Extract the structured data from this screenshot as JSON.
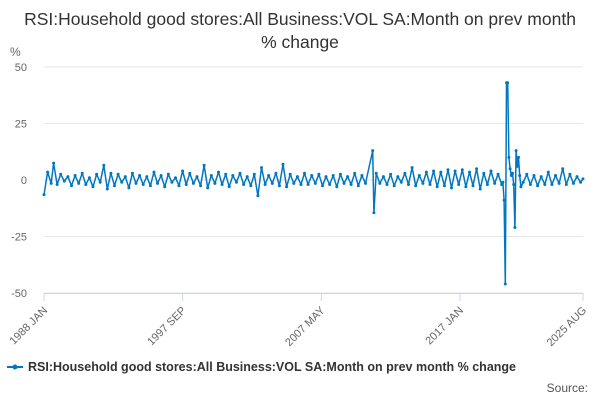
{
  "chart_data": {
    "type": "line",
    "title": "RSI:Household good stores:All Business:VOL SA:Month on prev month % change",
    "ylabel": "%",
    "xlabel": "",
    "ylim": [
      -50,
      50
    ],
    "yticks": [
      50,
      25,
      0,
      -25,
      -50
    ],
    "xrange": [
      "1988-01",
      "2025-08"
    ],
    "xticks": [
      "1988 JAN",
      "1997 SEP",
      "2007 MAY",
      "2017 JAN",
      "2025 AUG"
    ],
    "grid": "horizontal",
    "legend_position": "bottom",
    "series": [
      {
        "name": "RSI:Household good stores:All Business:VOL SA:Month on prev month % change",
        "color": "#0077c0",
        "points": [
          [
            "1988-01",
            -6.5
          ],
          [
            "1988-04",
            3.5
          ],
          [
            "1988-07",
            -1.5
          ],
          [
            "1988-09",
            7.5
          ],
          [
            "1988-12",
            -2.0
          ],
          [
            "1989-03",
            2.5
          ],
          [
            "1989-06",
            -0.5
          ],
          [
            "1989-09",
            1.5
          ],
          [
            "1989-12",
            -2.5
          ],
          [
            "1990-03",
            2.0
          ],
          [
            "1990-06",
            -1.5
          ],
          [
            "1990-09",
            3.0
          ],
          [
            "1990-12",
            -2.0
          ],
          [
            "1991-03",
            1.0
          ],
          [
            "1991-06",
            -3.0
          ],
          [
            "1991-09",
            2.5
          ],
          [
            "1991-12",
            -1.0
          ],
          [
            "1992-03",
            6.5
          ],
          [
            "1992-06",
            -4.0
          ],
          [
            "1992-09",
            3.0
          ],
          [
            "1992-12",
            -2.5
          ],
          [
            "1993-03",
            2.5
          ],
          [
            "1993-06",
            -1.0
          ],
          [
            "1993-09",
            1.5
          ],
          [
            "1993-12",
            -3.5
          ],
          [
            "1994-03",
            3.0
          ],
          [
            "1994-06",
            -1.5
          ],
          [
            "1994-09",
            2.0
          ],
          [
            "1994-12",
            -2.0
          ],
          [
            "1995-03",
            1.5
          ],
          [
            "1995-06",
            -2.5
          ],
          [
            "1995-09",
            3.5
          ],
          [
            "1995-12",
            -1.5
          ],
          [
            "1996-03",
            2.0
          ],
          [
            "1996-06",
            -3.0
          ],
          [
            "1996-09",
            2.5
          ],
          [
            "1996-12",
            -1.0
          ],
          [
            "1997-03",
            1.0
          ],
          [
            "1997-06",
            -2.5
          ],
          [
            "1997-09",
            4.0
          ],
          [
            "1997-12",
            -2.0
          ],
          [
            "1998-03",
            3.0
          ],
          [
            "1998-06",
            -1.5
          ],
          [
            "1998-09",
            1.5
          ],
          [
            "1998-12",
            -2.5
          ],
          [
            "1999-03",
            6.5
          ],
          [
            "1999-06",
            -3.5
          ],
          [
            "1999-09",
            2.0
          ],
          [
            "1999-12",
            -1.5
          ],
          [
            "2000-03",
            3.5
          ],
          [
            "2000-06",
            -2.0
          ],
          [
            "2000-09",
            2.5
          ],
          [
            "2000-12",
            -3.0
          ],
          [
            "2001-03",
            2.0
          ],
          [
            "2001-06",
            -1.0
          ],
          [
            "2001-09",
            3.0
          ],
          [
            "2001-12",
            -2.0
          ],
          [
            "2002-03",
            1.5
          ],
          [
            "2002-06",
            -2.5
          ],
          [
            "2002-09",
            2.5
          ],
          [
            "2002-12",
            -7.0
          ],
          [
            "2003-03",
            5.5
          ],
          [
            "2003-06",
            -2.0
          ],
          [
            "2003-09",
            2.0
          ],
          [
            "2003-12",
            -1.5
          ],
          [
            "2004-03",
            3.0
          ],
          [
            "2004-06",
            -2.5
          ],
          [
            "2004-09",
            7.0
          ],
          [
            "2004-12",
            -3.0
          ],
          [
            "2005-03",
            2.5
          ],
          [
            "2005-06",
            -1.5
          ],
          [
            "2005-09",
            1.5
          ],
          [
            "2005-12",
            -2.0
          ],
          [
            "2006-03",
            3.0
          ],
          [
            "2006-06",
            -2.0
          ],
          [
            "2006-09",
            2.0
          ],
          [
            "2006-12",
            -1.5
          ],
          [
            "2007-03",
            2.5
          ],
          [
            "2007-06",
            -2.5
          ],
          [
            "2007-09",
            1.5
          ],
          [
            "2007-12",
            -2.0
          ],
          [
            "2008-03",
            2.0
          ],
          [
            "2008-06",
            -3.0
          ],
          [
            "2008-09",
            2.5
          ],
          [
            "2008-12",
            -1.5
          ],
          [
            "2009-03",
            1.5
          ],
          [
            "2009-06",
            -2.0
          ],
          [
            "2009-09",
            3.0
          ],
          [
            "2009-12",
            -2.5
          ],
          [
            "2010-03",
            2.0
          ],
          [
            "2010-06",
            -1.5
          ],
          [
            "2010-12",
            13.0
          ],
          [
            "2011-01",
            -14.5
          ],
          [
            "2011-03",
            3.0
          ],
          [
            "2011-06",
            -1.5
          ],
          [
            "2011-09",
            1.5
          ],
          [
            "2011-12",
            -2.0
          ],
          [
            "2012-03",
            2.5
          ],
          [
            "2012-06",
            -2.5
          ],
          [
            "2012-09",
            1.5
          ],
          [
            "2012-12",
            -1.0
          ],
          [
            "2013-03",
            3.0
          ],
          [
            "2013-06",
            -2.0
          ],
          [
            "2013-09",
            5.5
          ],
          [
            "2013-12",
            -2.5
          ],
          [
            "2014-03",
            2.0
          ],
          [
            "2014-06",
            -1.5
          ],
          [
            "2014-09",
            3.5
          ],
          [
            "2014-12",
            -2.0
          ],
          [
            "2015-03",
            4.0
          ],
          [
            "2015-06",
            -3.0
          ],
          [
            "2015-09",
            3.5
          ],
          [
            "2015-12",
            -2.5
          ],
          [
            "2016-03",
            4.5
          ],
          [
            "2016-06",
            -3.5
          ],
          [
            "2016-09",
            4.0
          ],
          [
            "2016-12",
            -2.0
          ],
          [
            "2017-03",
            4.5
          ],
          [
            "2017-06",
            -3.0
          ],
          [
            "2017-09",
            3.5
          ],
          [
            "2017-12",
            -2.5
          ],
          [
            "2018-03",
            5.0
          ],
          [
            "2018-06",
            -4.0
          ],
          [
            "2018-09",
            3.0
          ],
          [
            "2018-12",
            -2.0
          ],
          [
            "2019-03",
            4.0
          ],
          [
            "2019-06",
            -1.5
          ],
          [
            "2019-09",
            2.5
          ],
          [
            "2019-12",
            -2.0
          ],
          [
            "2020-01",
            -1.0
          ],
          [
            "2020-02",
            -9.0
          ],
          [
            "2020-03",
            -46.0
          ],
          [
            "2020-04",
            43.0
          ],
          [
            "2020-05",
            43.0
          ],
          [
            "2020-06",
            10.0
          ],
          [
            "2020-07",
            5.0
          ],
          [
            "2020-08",
            2.0
          ],
          [
            "2020-09",
            3.0
          ],
          [
            "2020-10",
            -2.0
          ],
          [
            "2020-11",
            -21.0
          ],
          [
            "2020-12",
            13.0
          ],
          [
            "2021-01",
            6.0
          ],
          [
            "2021-02",
            10.0
          ],
          [
            "2021-03",
            2.0
          ],
          [
            "2021-04",
            -3.0
          ],
          [
            "2021-06",
            -1.0
          ],
          [
            "2021-09",
            2.5
          ],
          [
            "2021-12",
            -2.0
          ],
          [
            "2022-03",
            2.0
          ],
          [
            "2022-06",
            -2.5
          ],
          [
            "2022-09",
            1.5
          ],
          [
            "2022-12",
            -2.0
          ],
          [
            "2023-03",
            3.5
          ],
          [
            "2023-06",
            -2.0
          ],
          [
            "2023-09",
            2.0
          ],
          [
            "2023-12",
            -1.5
          ],
          [
            "2024-03",
            5.0
          ],
          [
            "2024-06",
            -2.0
          ],
          [
            "2024-09",
            2.5
          ],
          [
            "2024-12",
            -1.5
          ],
          [
            "2025-03",
            1.5
          ],
          [
            "2025-06",
            -1.0
          ],
          [
            "2025-08",
            0.5
          ]
        ]
      }
    ]
  },
  "legend": {
    "label": "RSI:Household good stores:All Business:VOL SA:Month on prev month % change"
  },
  "source": {
    "label": "Source:"
  }
}
